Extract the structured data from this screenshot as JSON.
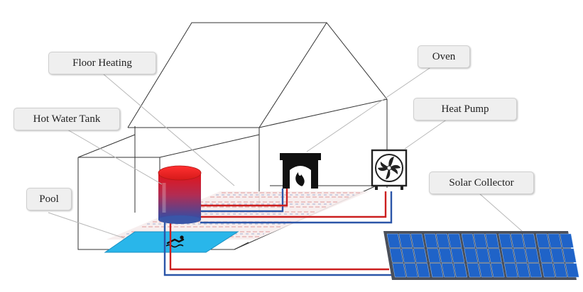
{
  "labels": {
    "floor_heating": "Floor Heating",
    "hot_water_tank": "Hot Water Tank",
    "pool": "Pool",
    "oven": "Oven",
    "heat_pump": "Heat Pump",
    "solar_collector": "Solar Collector"
  },
  "icons": [
    "fireplace-icon",
    "fan-icon",
    "swimmer-icon",
    "solar-panel-icon",
    "water-tank-icon"
  ],
  "colors": {
    "hot_pipe": "#cc1f1f",
    "cold_pipe": "#2b55a8",
    "pool_water": "#29b6ea",
    "panel_cell": "#1f63c8",
    "panel_frame": "#4a4f5a",
    "callout_bg": "#efefef",
    "outline": "#333333"
  }
}
